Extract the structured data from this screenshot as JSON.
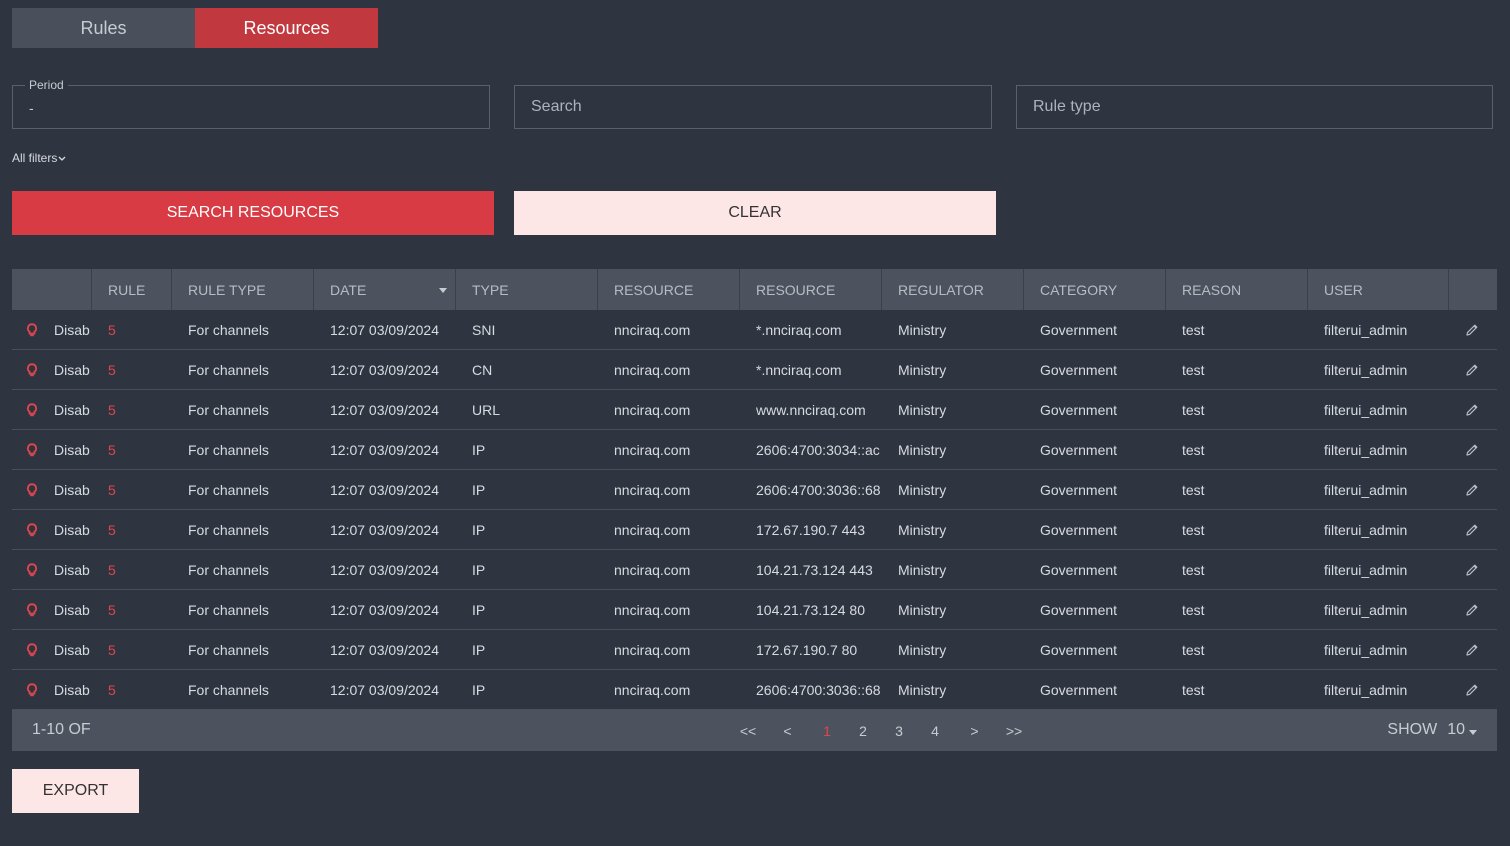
{
  "tabs": [
    {
      "label": "Rules",
      "active": false
    },
    {
      "label": "Resources",
      "active": true
    }
  ],
  "filters": {
    "period": {
      "label": "Period",
      "value": "-"
    },
    "search": {
      "placeholder": "Search"
    },
    "rule_type": {
      "placeholder": "Rule type"
    },
    "all_filters_label": "All filters"
  },
  "buttons": {
    "search": "SEARCH RESOURCES",
    "clear": "CLEAR",
    "export": "EXPORT"
  },
  "table": {
    "columns": [
      "",
      "RULE",
      "RULE TYPE",
      "DATE",
      "TYPE",
      "RESOURCE",
      "RESOURCE",
      "REGULATOR",
      "CATEGORY",
      "REASON",
      "USER",
      ""
    ],
    "sorted_column": "DATE",
    "rows": [
      {
        "status": "Disab",
        "rule": "5",
        "rule_type": "For channels",
        "date": "12:07 03/09/2024",
        "type": "SNI",
        "resource_domain": "nnciraq.com",
        "resource": "*.nnciraq.com",
        "regulator": "Ministry",
        "category": "Government",
        "reason": "test",
        "user": "filterui_admin"
      },
      {
        "status": "Disab",
        "rule": "5",
        "rule_type": "For channels",
        "date": "12:07 03/09/2024",
        "type": "CN",
        "resource_domain": "nnciraq.com",
        "resource": "*.nnciraq.com",
        "regulator": "Ministry",
        "category": "Government",
        "reason": "test",
        "user": "filterui_admin"
      },
      {
        "status": "Disab",
        "rule": "5",
        "rule_type": "For channels",
        "date": "12:07 03/09/2024",
        "type": "URL",
        "resource_domain": "nnciraq.com",
        "resource": "www.nnciraq.com",
        "regulator": "Ministry",
        "category": "Government",
        "reason": "test",
        "user": "filterui_admin"
      },
      {
        "status": "Disab",
        "rule": "5",
        "rule_type": "For channels",
        "date": "12:07 03/09/2024",
        "type": "IP",
        "resource_domain": "nnciraq.com",
        "resource": "2606:4700:3034::ac",
        "regulator": "Ministry",
        "category": "Government",
        "reason": "test",
        "user": "filterui_admin"
      },
      {
        "status": "Disab",
        "rule": "5",
        "rule_type": "For channels",
        "date": "12:07 03/09/2024",
        "type": "IP",
        "resource_domain": "nnciraq.com",
        "resource": "2606:4700:3036::68",
        "regulator": "Ministry",
        "category": "Government",
        "reason": "test",
        "user": "filterui_admin"
      },
      {
        "status": "Disab",
        "rule": "5",
        "rule_type": "For channels",
        "date": "12:07 03/09/2024",
        "type": "IP",
        "resource_domain": "nnciraq.com",
        "resource": "172.67.190.7 443",
        "regulator": "Ministry",
        "category": "Government",
        "reason": "test",
        "user": "filterui_admin"
      },
      {
        "status": "Disab",
        "rule": "5",
        "rule_type": "For channels",
        "date": "12:07 03/09/2024",
        "type": "IP",
        "resource_domain": "nnciraq.com",
        "resource": "104.21.73.124 443",
        "regulator": "Ministry",
        "category": "Government",
        "reason": "test",
        "user": "filterui_admin"
      },
      {
        "status": "Disab",
        "rule": "5",
        "rule_type": "For channels",
        "date": "12:07 03/09/2024",
        "type": "IP",
        "resource_domain": "nnciraq.com",
        "resource": "104.21.73.124 80",
        "regulator": "Ministry",
        "category": "Government",
        "reason": "test",
        "user": "filterui_admin"
      },
      {
        "status": "Disab",
        "rule": "5",
        "rule_type": "For channels",
        "date": "12:07 03/09/2024",
        "type": "IP",
        "resource_domain": "nnciraq.com",
        "resource": "172.67.190.7 80",
        "regulator": "Ministry",
        "category": "Government",
        "reason": "test",
        "user": "filterui_admin"
      },
      {
        "status": "Disab",
        "rule": "5",
        "rule_type": "For channels",
        "date": "12:07 03/09/2024",
        "type": "IP",
        "resource_domain": "nnciraq.com",
        "resource": "2606:4700:3036::68",
        "regulator": "Ministry",
        "category": "Government",
        "reason": "test",
        "user": "filterui_admin"
      }
    ]
  },
  "pagination": {
    "range_text": "1-10 OF",
    "first": "<<",
    "prev": "<",
    "pages": [
      "1",
      "2",
      "3",
      "4"
    ],
    "current_page": "1",
    "next": ">",
    "last": ">>",
    "show_label": "SHOW",
    "page_size": "10"
  },
  "colors": {
    "background": "#2e3440",
    "accent_red": "#d83b44",
    "active_tab": "#c1393f",
    "light_button": "#fde6e6",
    "header_bg": "#4d535e",
    "status_icon": "#e0464e"
  },
  "icons": {
    "status": "lightbulb-icon",
    "edit": "pencil-icon",
    "sort": "sort-caret-icon",
    "dropdown": "chevron-down-icon"
  }
}
